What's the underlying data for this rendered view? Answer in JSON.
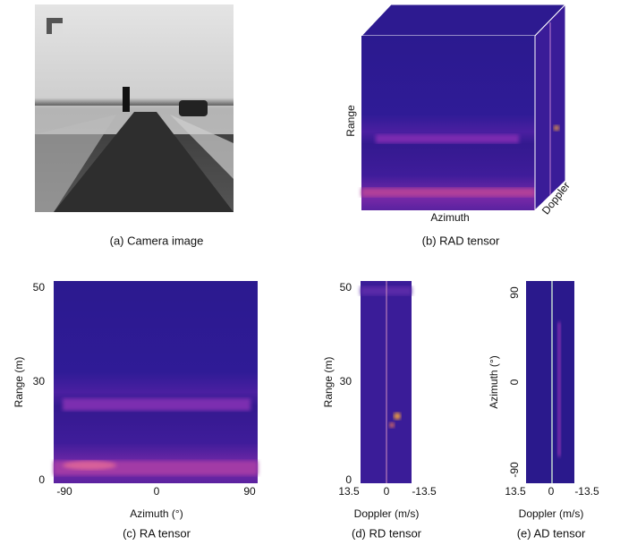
{
  "panels": [
    {
      "caption": "(a)  Camera image"
    },
    {
      "caption": "(b) RAD tensor",
      "range_label": "Range",
      "azimuth_label": "Azimuth",
      "doppler_label": "Doppler"
    },
    {
      "caption": "(c) RA tensor",
      "ylabel": "Range (m)",
      "xlabel": "Azimuth (°)",
      "yticks": [
        50,
        30,
        0
      ],
      "xticks": [
        -90,
        0,
        90
      ]
    },
    {
      "caption": "(d) RD tensor",
      "ylabel": "Range (m)",
      "xlabel": "Doppler (m/s)",
      "yticks": [
        50,
        30,
        0
      ],
      "xticks": [
        13.5,
        0,
        -13.5
      ]
    },
    {
      "caption": "(e) AD tensor",
      "ylabel": "Azimuth (°)",
      "xlabel": "Doppler (m/s)",
      "yticks": [
        90,
        0,
        -90
      ],
      "xticks": [
        13.5,
        0,
        -13.5
      ]
    }
  ]
}
